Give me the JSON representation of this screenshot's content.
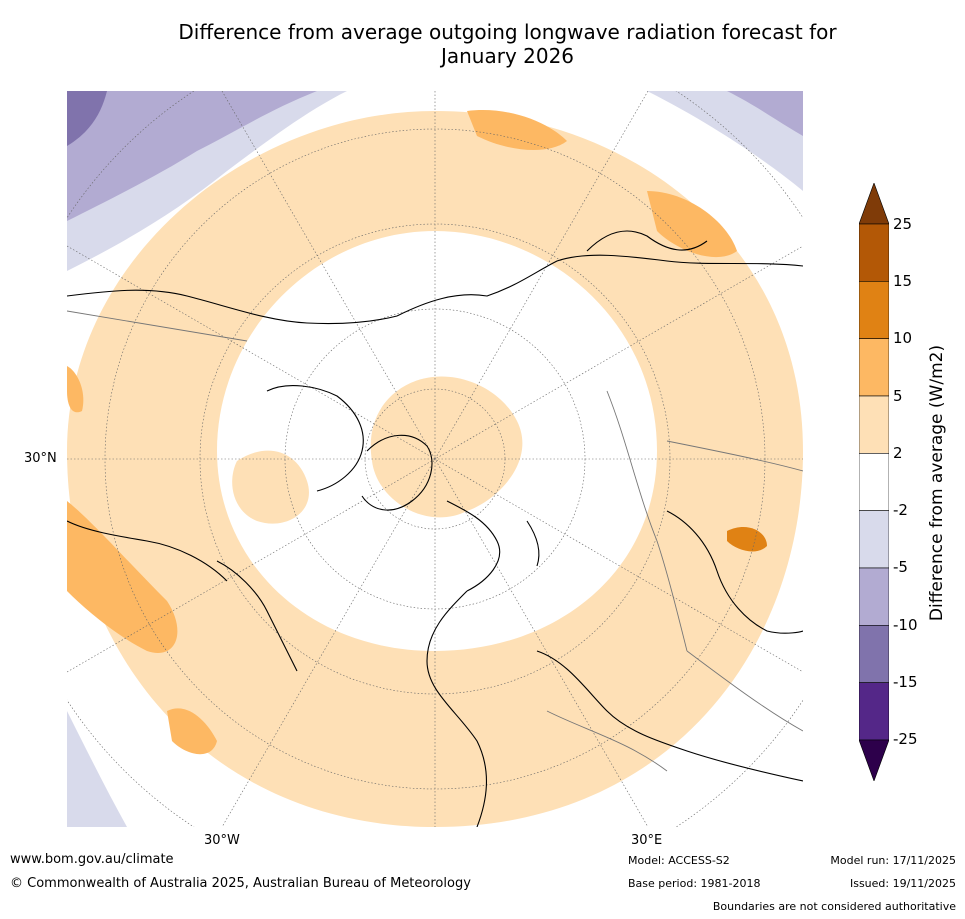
{
  "title": {
    "line1": "Difference from average outgoing longwave radiation forecast for",
    "line2": "January 2026"
  },
  "map": {
    "projection": "north-polar-stereographic",
    "lat_label_left": "30°N",
    "lon_labels_bottom": [
      "30°W",
      "30°E"
    ]
  },
  "legend": {
    "title": "Difference from average (W/m2)",
    "ticks": [
      "25",
      "15",
      "10",
      "5",
      "2",
      "-2",
      "-5",
      "-10",
      "-15",
      "-25"
    ],
    "bins": [
      {
        "range": ">25",
        "color": "#7f3b08"
      },
      {
        "range": "15 to 25",
        "color": "#b35806"
      },
      {
        "range": "10 to 15",
        "color": "#e08214"
      },
      {
        "range": "5 to 10",
        "color": "#fdb863"
      },
      {
        "range": "2 to 5",
        "color": "#fee0b6"
      },
      {
        "range": "-2 to 2",
        "color": "#ffffff"
      },
      {
        "range": "-5 to -2",
        "color": "#d8daeb"
      },
      {
        "range": "-10 to -5",
        "color": "#b2abd2"
      },
      {
        "range": "-15 to -10",
        "color": "#8073ac"
      },
      {
        "range": "-25 to -15",
        "color": "#542788"
      },
      {
        "range": "<-25",
        "color": "#2d004b"
      }
    ]
  },
  "footer": {
    "url": "www.bom.gov.au/climate",
    "copyright": "© Commonwealth of Australia 2025, Australian Bureau of Meteorology",
    "model": "Model: ACCESS-S2",
    "base_period": "Base period: 1981-2018",
    "model_run": "Model run: 17/11/2025",
    "issued": "Issued: 19/11/2025",
    "disclaimer": "Boundaries are not considered authoritative"
  }
}
